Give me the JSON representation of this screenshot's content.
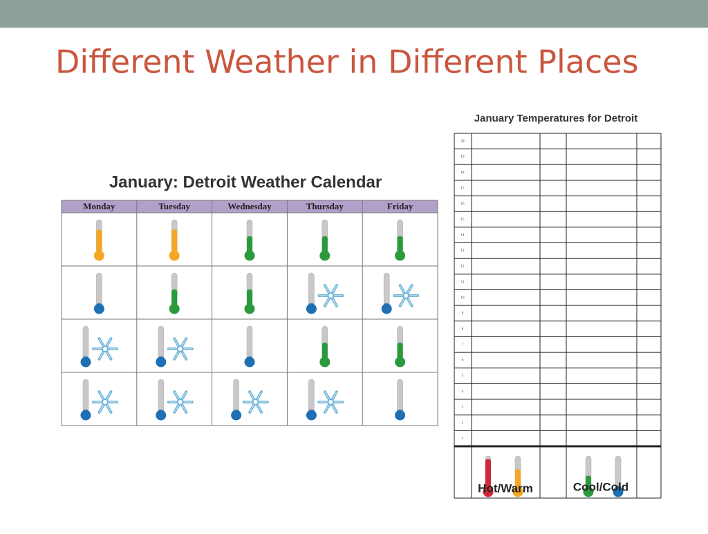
{
  "header": {
    "title": "Different Weather in Different Places"
  },
  "calendar": {
    "title": "January: Detroit Weather Calendar",
    "days": [
      "Monday",
      "Tuesday",
      "Wednesday",
      "Thursday",
      "Friday"
    ]
  },
  "chart": {
    "title": "January Temperatures for Detroit",
    "rows": [
      20,
      19,
      18,
      17,
      16,
      15,
      14,
      13,
      12,
      11,
      10,
      9,
      8,
      7,
      6,
      5,
      4,
      3,
      2,
      1
    ],
    "legend": [
      "Hot/Warm",
      "Cool/Cold"
    ]
  }
}
